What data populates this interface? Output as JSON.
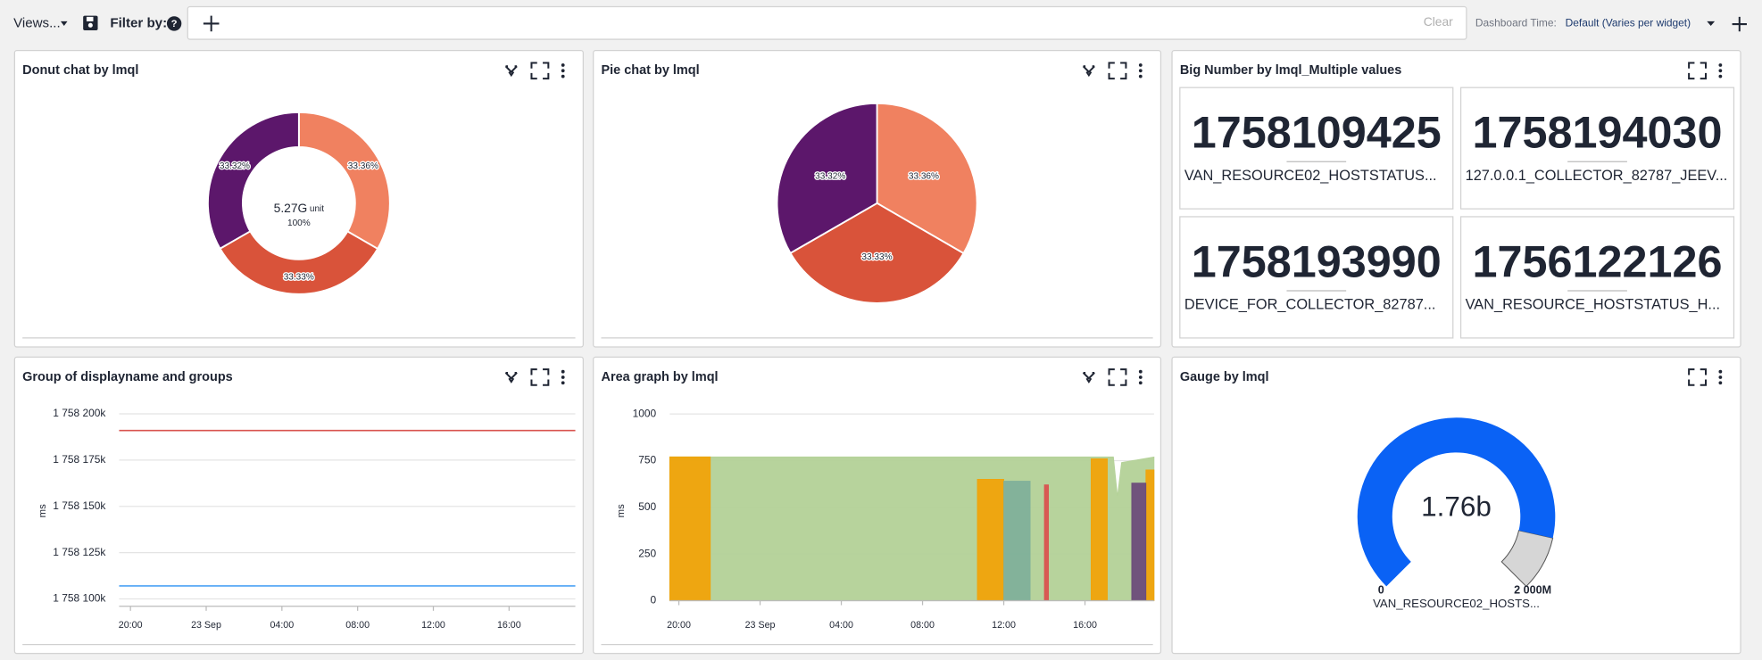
{
  "toolbar": {
    "views": "Views...",
    "filter_label": "Filter by:",
    "clear": "Clear",
    "time_label": "Dashboard Time:",
    "time_value": "Default (Varies per widget)"
  },
  "widgets": [
    {
      "title": "Donut chat by lmql",
      "chart_data": {
        "type": "donut",
        "values": [
          33.36,
          33.33,
          33.32
        ],
        "value_labels": [
          "33.36%",
          "33.33%",
          "33.32%"
        ],
        "colors": [
          "#f08160",
          "#d9533a",
          "#5c176b"
        ],
        "center_value": "5.27G",
        "center_unit": "unit",
        "center_percent": "100%"
      }
    },
    {
      "title": "Pie chat by lmql",
      "chart_data": {
        "type": "pie",
        "values": [
          33.36,
          33.33,
          33.32
        ],
        "value_labels": [
          "33.36%",
          "33.33%",
          "33.32%"
        ],
        "colors": [
          "#f08160",
          "#d9533a",
          "#5c176b"
        ]
      }
    },
    {
      "title": "Big Number by lmql_Multiple values",
      "chart_data": {
        "type": "big-number",
        "values": [
          1758109425,
          1758194030,
          1758193990,
          1756122126
        ],
        "labels": [
          "VAN_RESOURCE02_HOSTSTATUS...",
          "127.0.0.1_COLLECTOR_82787_JEEV...",
          "DEVICE_FOR_COLLECTOR_82787...",
          "VAN_RESOURCE_HOSTSTATUS_H..."
        ]
      }
    },
    {
      "title": "Group of displayname and groups",
      "chart_data": {
        "type": "line",
        "y_label": "ms",
        "xlim": [
          -0.6,
          23.5
        ],
        "xticks": [
          {
            "value": 0,
            "label": "20:00"
          },
          {
            "value": 4,
            "label": "23 Sep"
          },
          {
            "value": 8,
            "label": "04:00"
          },
          {
            "value": 12,
            "label": "08:00"
          },
          {
            "value": 16,
            "label": "12:00"
          },
          {
            "value": 20,
            "label": "16:00"
          }
        ],
        "ylim": [
          1758096000,
          1758204000
        ],
        "yticks": [
          {
            "value": 1758100000,
            "label": "1 758 100k"
          },
          {
            "value": 1758125000,
            "label": "1 758 125k"
          },
          {
            "value": 1758150000,
            "label": "1 758 150k"
          },
          {
            "value": 1758175000,
            "label": "1 758 175k"
          },
          {
            "value": 1758200000,
            "label": "1 758 200k"
          }
        ],
        "grid": true,
        "series": [
          {
            "color": "#d9534f",
            "x": [
              -0.6,
              23.5
            ],
            "values": [
              1758191000,
              1758191000
            ]
          },
          {
            "color": "#4da3f5",
            "x": [
              -0.6,
              23.5
            ],
            "values": [
              1758107000,
              1758107000
            ]
          }
        ]
      }
    },
    {
      "title": "Area graph by lmql",
      "chart_data": {
        "type": "area",
        "y_label": "ms",
        "xlim": [
          -0.45,
          23.4
        ],
        "xticks": [
          {
            "value": 0,
            "label": "20:00"
          },
          {
            "value": 4,
            "label": "23 Sep"
          },
          {
            "value": 8,
            "label": "04:00"
          },
          {
            "value": 12,
            "label": "08:00"
          },
          {
            "value": 16,
            "label": "12:00"
          },
          {
            "value": 20,
            "label": "16:00"
          }
        ],
        "ylim": [
          0,
          1040
        ],
        "yticks": [
          0,
          250,
          500,
          750,
          1000
        ],
        "grid": true,
        "series": [
          {
            "color": "#b3d197",
            "x": [
              -0.45,
              21.4,
              21.6,
              21.8,
              23.4
            ],
            "values": [
              770,
              770,
              560,
              740,
              770
            ]
          },
          {
            "color": "#f0a30a",
            "x": [
              -0.45,
              1.55,
              1.56,
              14.7,
              16.0,
              16.01,
              20.3,
              21.1,
              21.11,
              23.0,
              23.4
            ],
            "values": [
              770,
              770,
              null,
              650,
              650,
              null,
              760,
              760,
              null,
              700,
              700
            ]
          },
          {
            "color": "#7fb09a",
            "x": [
              16.0,
              17.3
            ],
            "values": [
              640,
              640
            ]
          },
          {
            "color": "#d9534f",
            "x": [
              18.0,
              18.2
            ],
            "values": [
              620,
              620
            ]
          },
          {
            "color": "#6b4c7a",
            "x": [
              22.3,
              23.0
            ],
            "values": [
              630,
              630
            ]
          }
        ]
      }
    },
    {
      "title": "Gauge by lmql",
      "chart_data": {
        "type": "gauge",
        "value": 1760,
        "value_label": "1.76b",
        "min": 0,
        "max": {
          "value": 2000,
          "label": "2 000M"
        },
        "label": "VAN_RESOURCE02_HOSTS...",
        "color": "#0a62f5",
        "track_color": "#d6d6d6"
      }
    }
  ]
}
